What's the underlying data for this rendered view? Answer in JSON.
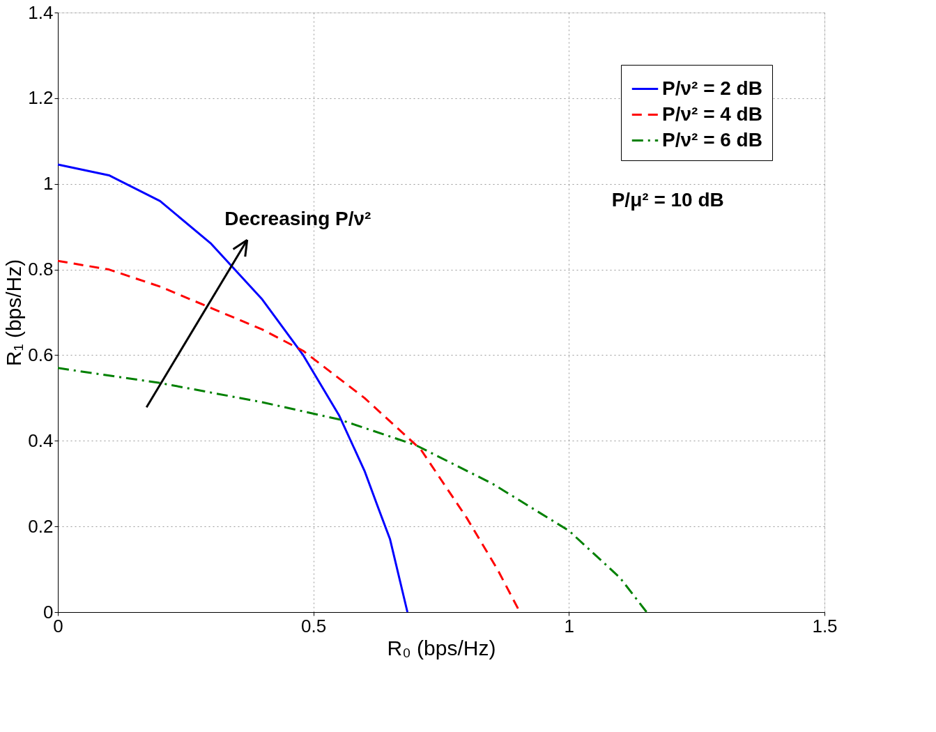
{
  "chart_data": {
    "type": "line",
    "xlabel": "R₀ (bps/Hz)",
    "ylabel": "R₁ (bps/Hz)",
    "xlim": [
      0,
      1.5
    ],
    "xticks": [
      0,
      0.5,
      1,
      1.5
    ],
    "ylim": [
      0,
      1.4
    ],
    "yticks": [
      0,
      0.2,
      0.4,
      0.6,
      0.8,
      1,
      1.2,
      1.4
    ],
    "grid": true,
    "legend": "top right",
    "annotations": [
      "Decreasing P/ν²",
      "P/μ² = 10 dB"
    ],
    "series": [
      {
        "name": "P/ν² = 2 dB",
        "color": "#0000ff",
        "line_style": "solid",
        "x": [
          0,
          0.1,
          0.2,
          0.3,
          0.4,
          0.48,
          0.55,
          0.6,
          0.627,
          0.65,
          0.684
        ],
        "values": [
          1.045,
          1.02,
          0.96,
          0.86,
          0.73,
          0.6,
          0.46,
          0.33,
          0.243,
          0.17,
          0
        ]
      },
      {
        "name": "P/ν² = 4 dB",
        "color": "#ff0000",
        "line_style": "dashed",
        "x": [
          0,
          0.1,
          0.2,
          0.3,
          0.4,
          0.48,
          0.6,
          0.71,
          0.8,
          0.86,
          0.904
        ],
        "values": [
          0.82,
          0.8,
          0.76,
          0.71,
          0.66,
          0.61,
          0.5,
          0.38,
          0.22,
          0.1,
          0
        ]
      },
      {
        "name": "P/ν² = 6 dB",
        "color": "#008000",
        "line_style": "dashdot",
        "x": [
          0,
          0.2,
          0.4,
          0.55,
          0.7,
          0.85,
          1.0,
          1.1,
          1.152
        ],
        "values": [
          0.57,
          0.535,
          0.49,
          0.45,
          0.39,
          0.3,
          0.19,
          0.08,
          0
        ]
      }
    ]
  }
}
